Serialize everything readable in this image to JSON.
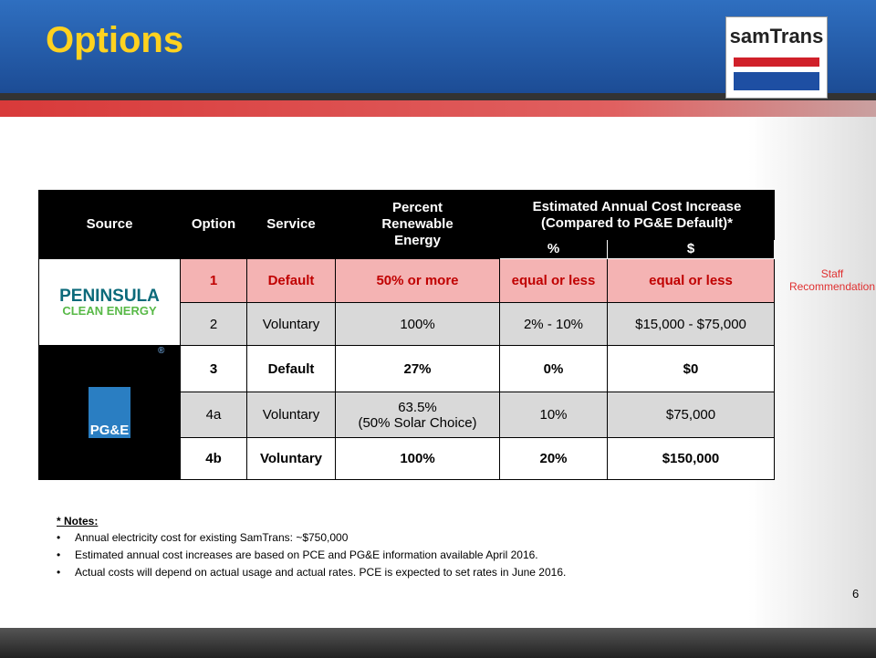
{
  "header": {
    "title": "Options",
    "logo": "samTrans"
  },
  "table": {
    "headers": [
      "Source",
      "Option",
      "Service",
      "Percent Renewable Energy",
      "Estimated Annual Cost Increase (Compared to PG&E Default)*"
    ],
    "subheaders": [
      "%",
      "$"
    ],
    "sources": [
      {
        "name": "PENINSULA",
        "sub": "CLEAN ENERGY"
      },
      {
        "name": "PG&E",
        "mark": "®"
      }
    ],
    "rows": [
      {
        "option": "1",
        "service": "Default",
        "renewable": "50% or more",
        "pct": "equal or less",
        "cost": "equal or less"
      },
      {
        "option": "2",
        "service": "Voluntary",
        "renewable": "100%",
        "pct": "2% - 10%",
        "cost": "$15,000 - $75,000"
      },
      {
        "option": "3",
        "service": "Default",
        "renewable": "27%",
        "pct": "0%",
        "cost": "$0"
      },
      {
        "option": "4a",
        "service": "Voluntary",
        "renewable": "63.5%",
        "renewable_note": "(50% Solar Choice)",
        "pct": "10%",
        "cost": "$75,000"
      },
      {
        "option": "4b",
        "service": "Voluntary",
        "renewable": "100%",
        "pct": "20%",
        "cost": "$150,000"
      }
    ]
  },
  "annotation": "Staff Recommendation",
  "notes": {
    "title": "* Notes:",
    "items": [
      "Annual electricity cost for existing SamTrans: ~$750,000",
      "Estimated annual cost increases are based on PCE and PG&E information available April 2016.",
      "Actual costs will depend on actual usage and actual rates. PCE is expected to set rates in June 2016."
    ]
  },
  "page_number": "6"
}
